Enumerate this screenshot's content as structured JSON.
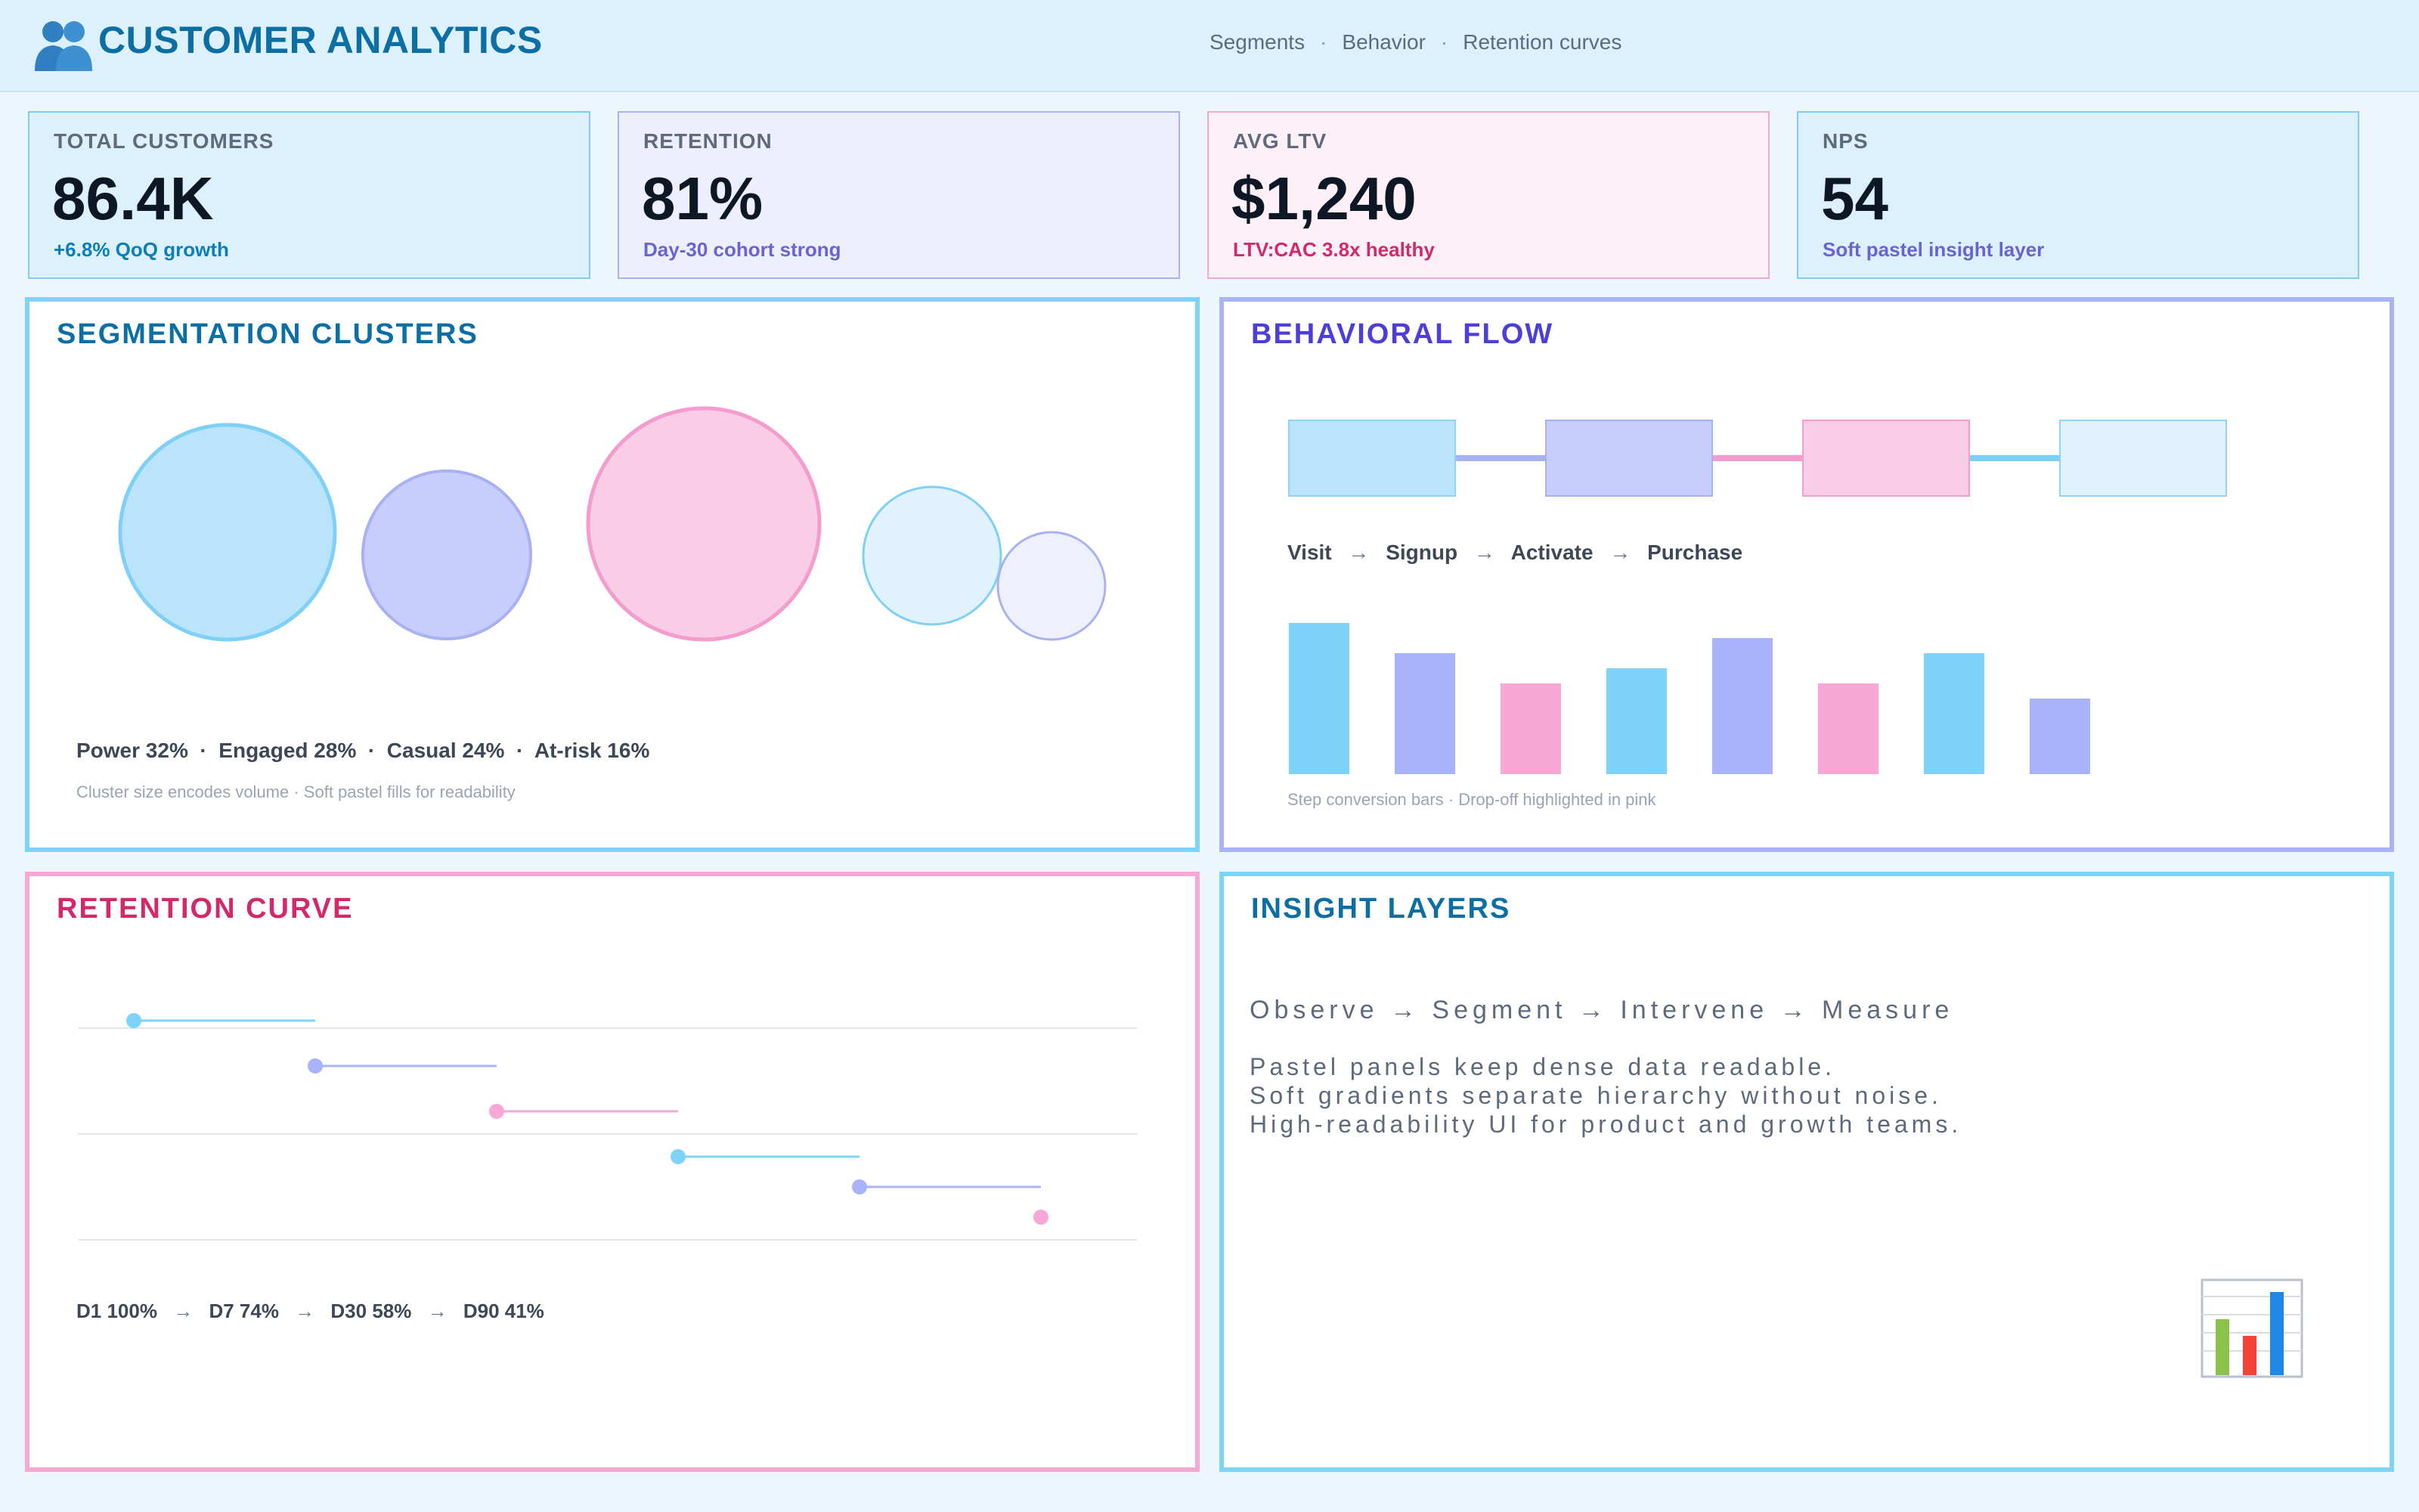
{
  "header": {
    "title": "CUSTOMER ANALYTICS",
    "logo_icon": "people-icon",
    "nav": [
      "Segments",
      "Behavior",
      "Retention curves"
    ],
    "nav_separator": "·"
  },
  "kpis": [
    {
      "label": "TOTAL CUSTOMERS",
      "value": "86.4K",
      "sub": "+6.8% QoQ growth",
      "bg": "#ddf0fd",
      "border": "#7fcdf4",
      "sub_color": "#0b7fb8"
    },
    {
      "label": "RETENTION",
      "value": "81%",
      "sub": "Day-30 cohort strong",
      "bg": "#edf0fc",
      "border": "#aab2f4",
      "sub_color": "#6a63d3"
    },
    {
      "label": "AVG LTV",
      "value": "$1,240",
      "sub": "LTV:CAC 3.8x healthy",
      "bg": "#fdf0f6",
      "border": "#f5a7d0",
      "sub_color": "#d4286d"
    },
    {
      "label": "NPS",
      "value": "54",
      "sub": "Soft pastel insight layer",
      "bg": "#ddf0fd",
      "border": "#7fcdf4",
      "sub_color": "#6a63d3"
    }
  ],
  "segmentation": {
    "title": "SEGMENTATION CLUSTERS",
    "border": "#7fd3f7",
    "title_color": "#0b6fa4",
    "clusters": [
      {
        "name": "Power",
        "pct": "32%"
      },
      {
        "name": "Engaged",
        "pct": "28%"
      },
      {
        "name": "Casual",
        "pct": "24%"
      },
      {
        "name": "At-risk",
        "pct": "16%"
      }
    ],
    "legend": "Power 32%  ·  Engaged 28%  ·  Casual 24%  ·  At-risk 16%",
    "caption": "Cluster size encodes volume  ·  Soft pastel fills for readability"
  },
  "behavior": {
    "title": "BEHAVIORAL FLOW",
    "border": "#a9b3f8",
    "title_color": "#4c3fd8",
    "steps": [
      "Visit",
      "Signup",
      "Activate",
      "Purchase"
    ],
    "arrow": "→",
    "bars": [
      100,
      80,
      60,
      70,
      90,
      60,
      80,
      50
    ],
    "bar_colors": [
      "#7fd3fb",
      "#a8b3fb",
      "#f7a8d6",
      "#7fd3fb",
      "#a8b3fb",
      "#f7a8d6",
      "#7fd3fb",
      "#a8b3fb"
    ],
    "caption": "Step conversion bars  ·  Drop-off highlighted in pink"
  },
  "retention": {
    "title": "RETENTION CURVE",
    "border": "#f5a9d3",
    "title_color": "#d4286d",
    "colors": [
      "#7fd3fb",
      "#a8b3fb",
      "#f7a8d6",
      "#7fd3fb",
      "#a8b3fb",
      "#f7a8d6"
    ],
    "points": [
      "D1 100%",
      "D7 74%",
      "D30 58%",
      "D90 41%"
    ],
    "arrow": "→"
  },
  "insights": {
    "title": "INSIGHT LAYERS",
    "border": "#7fd3f7",
    "title_color": "#0b6fa4",
    "flow": "Observe  →  Segment  →  Intervene  →  Measure",
    "lines": [
      "Pastel panels keep dense data readable.",
      "Soft gradients separate hierarchy without noise.",
      "High-readability UI for product and growth teams."
    ],
    "chart_icon": "bar-chart-icon"
  }
}
